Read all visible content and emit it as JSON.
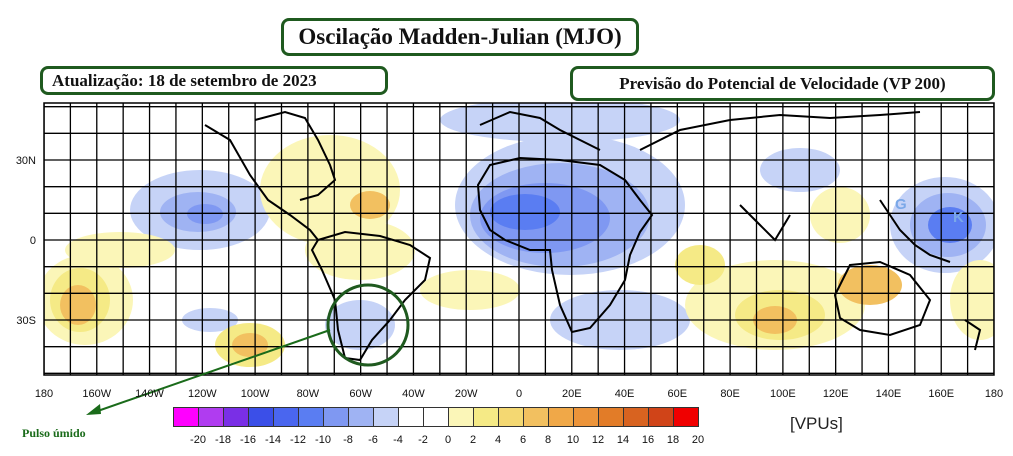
{
  "title": "Oscilação Madden-Julian (MJO)",
  "update_label": "Atualização: 18 de setembro de 2023",
  "forecast_label": "Previsão do Potencial de Velocidade (VP 200)",
  "annotation": "Pulso úmido",
  "units": "[VPUs]",
  "map_letters": [
    "G",
    "K"
  ],
  "lat_labels": [
    "30N",
    "0",
    "30S"
  ],
  "lon_labels": [
    "180",
    "160W",
    "140W",
    "120W",
    "100W",
    "80W",
    "60W",
    "40W",
    "20W",
    "0",
    "20E",
    "40E",
    "60E",
    "80E",
    "100E",
    "120E",
    "140E",
    "160E",
    "180"
  ],
  "colorbar": {
    "ticks": [
      "-20",
      "-18",
      "-16",
      "-14",
      "-12",
      "-10",
      "-8",
      "-6",
      "-4",
      "-2",
      "0",
      "2",
      "4",
      "6",
      "8",
      "10",
      "12",
      "14",
      "16",
      "18",
      "20"
    ],
    "colors": [
      "#ff00ff",
      "#b03cf0",
      "#7a2fe6",
      "#3b4fe8",
      "#4a66ef",
      "#5a7df2",
      "#7f98f2",
      "#9fb3f3",
      "#c6d3f7",
      "#ffffff",
      "#ffffff",
      "#fbf6b8",
      "#f5ea86",
      "#f4d872",
      "#f2c060",
      "#f0a848",
      "#ec943a",
      "#e27c28",
      "#d86320",
      "#d04418",
      "#f00000"
    ]
  },
  "colors": {
    "frame": "#1f5a1f",
    "negative": "#7f98f2",
    "positive": "#f0a848"
  }
}
